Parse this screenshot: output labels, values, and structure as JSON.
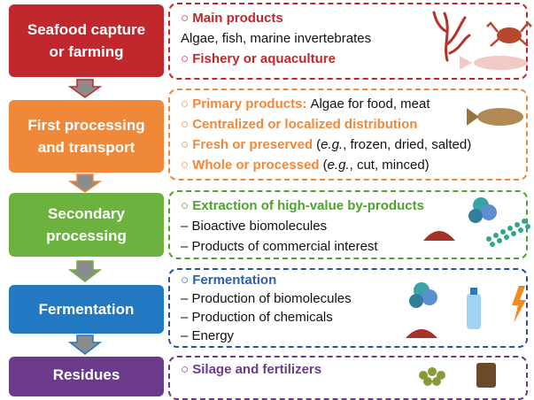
{
  "stages": [
    {
      "label": [
        "Seafood capture",
        "or farming"
      ],
      "lines": [
        [
          "○ Main products"
        ],
        [
          "Algae, fish, marine invertebrates"
        ],
        [
          "○ Fishery or aquaculture"
        ]
      ]
    },
    {
      "label": [
        "First processing",
        "and transport"
      ],
      "lines": [
        [
          "○ Primary products:",
          "Algae for food, meat"
        ],
        [
          "○ Centralized or localized distribution"
        ],
        [
          "○ Fresh or preserved",
          "(",
          "e.g.",
          ", frozen, dried, salted)"
        ],
        [
          "○ Whole or processed",
          "(",
          "e.g.",
          ", cut, minced)"
        ]
      ]
    },
    {
      "label": [
        "Secondary",
        "processing"
      ],
      "lines": [
        [
          "○ Extraction of high-value by-products"
        ],
        [
          "– Bioactive biomolecules"
        ],
        [
          "– Products of commercial interest"
        ]
      ]
    },
    {
      "label": [
        "Fermentation"
      ],
      "lines": [
        [
          "○ Fermentation"
        ],
        [
          "– Production of biomolecules"
        ],
        [
          "– Production of chemicals"
        ],
        [
          "– Energy"
        ]
      ]
    },
    {
      "label": [
        "Residues"
      ],
      "lines": [
        [
          "○ Silage and fertilizers"
        ]
      ]
    }
  ]
}
